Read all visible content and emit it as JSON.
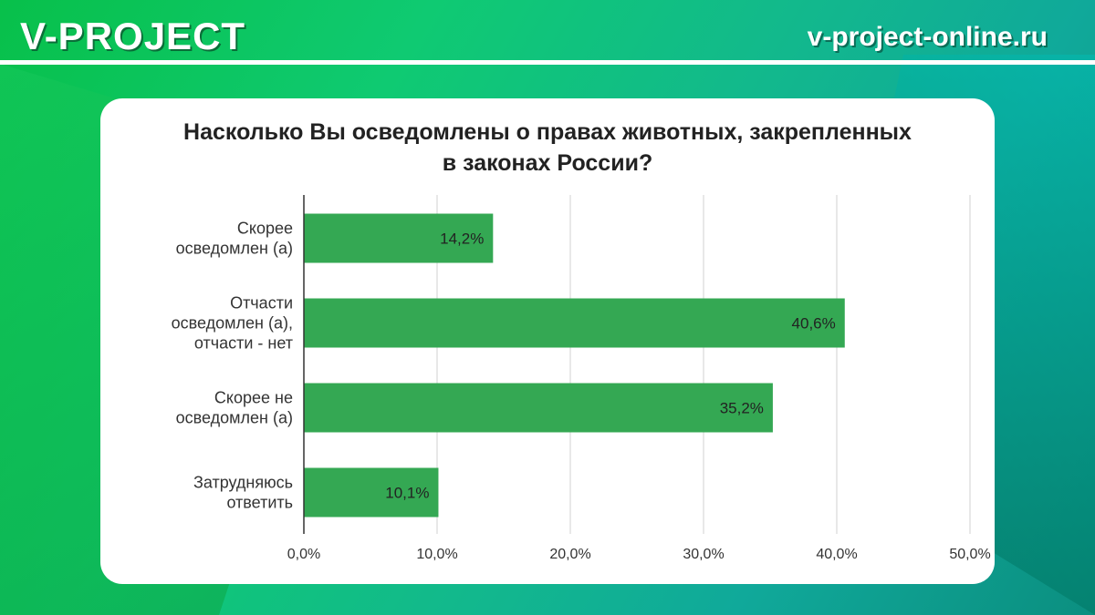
{
  "header": {
    "brand": "V-PROJECT",
    "site": "v-project-online.ru"
  },
  "colors": {
    "bar": "#34a853",
    "grid": "#d0d0d0",
    "axis": "#333333"
  },
  "chart_data": {
    "type": "bar",
    "orientation": "horizontal",
    "title": "Насколько Вы осведомлены о правах животных, закрепленных в законах России?",
    "title_lines": [
      "Насколько Вы осведомлены о правах животных, закрепленных",
      "в законах России?"
    ],
    "categories": [
      [
        "Скорее",
        "осведомлен (а)"
      ],
      [
        "Отчасти",
        "осведомлен (а),",
        "отчасти - нет"
      ],
      [
        "Скорее не",
        "осведомлен (а)"
      ],
      [
        "Затрудняюсь",
        "ответить"
      ]
    ],
    "values": [
      14.2,
      40.6,
      35.2,
      10.1
    ],
    "value_labels": [
      "14,2%",
      "40,6%",
      "35,2%",
      "10,1%"
    ],
    "xlim": [
      0,
      50
    ],
    "ticks": [
      0,
      10,
      20,
      30,
      40,
      50
    ],
    "tick_labels": [
      "0,0%",
      "10,0%",
      "20,0%",
      "30,0%",
      "40,0%",
      "50,0%"
    ],
    "grid": true,
    "legend": "none"
  }
}
